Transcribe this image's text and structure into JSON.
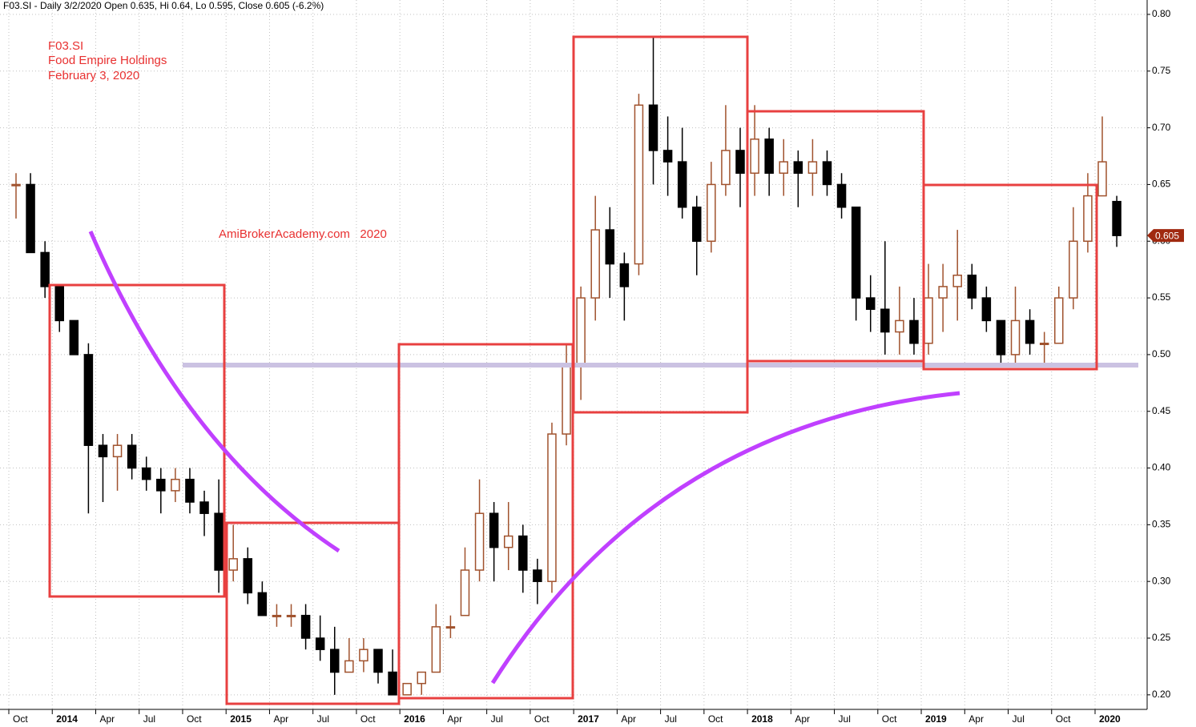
{
  "chart_data": {
    "type": "candlestick",
    "title": "F03.SI - Daily 3/2/2020 Open 0.635, Hi 0.64, Lo 0.595, Close 0.605 (-6.2%)",
    "annotations": [
      "F03.SI",
      "Food Empire Holdings",
      "February 3, 2020",
      "AmiBrokerAcademy.com   2020"
    ],
    "categories": [
      "Oct",
      null,
      null,
      "2014",
      null,
      null,
      "Apr",
      null,
      null,
      "Jul",
      null,
      null,
      "Oct",
      null,
      null,
      "2015",
      null,
      null,
      "Apr",
      null,
      null,
      "Jul",
      null,
      null,
      "Oct",
      null,
      null,
      "2016",
      null,
      null,
      "Apr",
      null,
      null,
      "Jul",
      null,
      null,
      "Oct",
      null,
      null,
      "2017",
      null,
      null,
      "Apr",
      null,
      null,
      "Jul",
      null,
      null,
      "Oct",
      null,
      null,
      "2018",
      null,
      null,
      "Apr",
      null,
      null,
      "Jul",
      null,
      null,
      "Oct",
      null,
      null,
      "2019",
      null,
      null,
      "Apr",
      null,
      null,
      "Jul",
      null,
      null,
      "Oct",
      null,
      null,
      "2020",
      null
    ],
    "open": [
      0.65,
      0.65,
      0.59,
      0.56,
      0.53,
      0.5,
      0.42,
      0.41,
      0.42,
      0.4,
      0.39,
      0.38,
      0.39,
      0.37,
      0.36,
      0.31,
      0.32,
      0.29,
      0.27,
      0.27,
      0.27,
      0.25,
      0.24,
      0.22,
      0.23,
      0.24,
      0.22,
      0.2,
      0.21,
      0.22,
      0.26,
      0.27,
      0.31,
      0.36,
      0.33,
      0.34,
      0.31,
      0.3,
      0.43,
      0.49,
      0.55,
      0.61,
      0.58,
      0.58,
      0.72,
      0.68,
      0.67,
      0.63,
      0.6,
      0.65,
      0.68,
      0.66,
      0.69,
      0.66,
      0.67,
      0.66,
      0.67,
      0.65,
      0.63,
      0.55,
      0.54,
      0.52,
      0.53,
      0.51,
      0.55,
      0.56,
      0.57,
      0.55,
      0.53,
      0.5,
      0.53,
      0.51,
      0.51,
      0.55,
      0.6,
      0.64,
      0.635
    ],
    "high": [
      0.66,
      0.66,
      0.6,
      0.56,
      0.53,
      0.51,
      0.43,
      0.43,
      0.43,
      0.41,
      0.4,
      0.4,
      0.4,
      0.38,
      0.39,
      0.35,
      0.33,
      0.3,
      0.28,
      0.28,
      0.28,
      0.27,
      0.26,
      0.25,
      0.25,
      0.24,
      0.24,
      0.21,
      0.22,
      0.28,
      0.27,
      0.33,
      0.39,
      0.37,
      0.37,
      0.35,
      0.32,
      0.44,
      0.51,
      0.56,
      0.64,
      0.63,
      0.59,
      0.73,
      0.78,
      0.71,
      0.7,
      0.64,
      0.67,
      0.72,
      0.7,
      0.72,
      0.7,
      0.69,
      0.68,
      0.69,
      0.68,
      0.66,
      0.63,
      0.57,
      0.6,
      0.56,
      0.55,
      0.58,
      0.58,
      0.61,
      0.58,
      0.56,
      0.53,
      0.56,
      0.54,
      0.52,
      0.56,
      0.63,
      0.66,
      0.71,
      0.64
    ],
    "low": [
      0.62,
      0.59,
      0.55,
      0.52,
      0.5,
      0.36,
      0.37,
      0.38,
      0.39,
      0.38,
      0.36,
      0.37,
      0.36,
      0.34,
      0.29,
      0.3,
      0.28,
      0.27,
      0.26,
      0.26,
      0.24,
      0.23,
      0.2,
      0.22,
      0.22,
      0.21,
      0.2,
      0.2,
      0.2,
      0.22,
      0.25,
      0.27,
      0.3,
      0.3,
      0.31,
      0.29,
      0.28,
      0.29,
      0.42,
      0.46,
      0.53,
      0.55,
      0.53,
      0.57,
      0.65,
      0.64,
      0.62,
      0.57,
      0.59,
      0.64,
      0.63,
      0.64,
      0.64,
      0.64,
      0.63,
      0.64,
      0.64,
      0.62,
      0.53,
      0.52,
      0.5,
      0.5,
      0.5,
      0.5,
      0.52,
      0.53,
      0.54,
      0.52,
      0.49,
      0.49,
      0.5,
      0.49,
      0.51,
      0.54,
      0.59,
      0.64,
      0.595
    ],
    "close": [
      0.65,
      0.59,
      0.56,
      0.53,
      0.5,
      0.42,
      0.41,
      0.42,
      0.4,
      0.39,
      0.38,
      0.39,
      0.37,
      0.36,
      0.31,
      0.32,
      0.29,
      0.27,
      0.27,
      0.27,
      0.25,
      0.24,
      0.22,
      0.23,
      0.24,
      0.22,
      0.2,
      0.21,
      0.22,
      0.26,
      0.26,
      0.31,
      0.36,
      0.33,
      0.34,
      0.31,
      0.3,
      0.43,
      0.49,
      0.55,
      0.61,
      0.58,
      0.56,
      0.72,
      0.68,
      0.67,
      0.63,
      0.6,
      0.65,
      0.68,
      0.66,
      0.69,
      0.66,
      0.67,
      0.66,
      0.67,
      0.65,
      0.63,
      0.55,
      0.54,
      0.52,
      0.53,
      0.51,
      0.55,
      0.56,
      0.57,
      0.55,
      0.53,
      0.5,
      0.53,
      0.51,
      0.51,
      0.55,
      0.6,
      0.64,
      0.67,
      0.605
    ],
    "up_color": "#a0522d",
    "down_color": "#000000",
    "last_value": 0.605,
    "last_color": "#a02a10",
    "ylim": [
      0.19,
      0.81
    ],
    "yticks": [
      {
        "value": 0.2,
        "label": "0.20"
      },
      0.25,
      {
        "value": 0.3,
        "label": "0.30"
      },
      0.35,
      {
        "value": 0.4,
        "label": "0.40"
      },
      0.45,
      {
        "value": 0.5,
        "label": "0.50"
      },
      0.55,
      {
        "value": 0.6,
        "label": "0.60"
      },
      0.65,
      {
        "value": 0.7,
        "label": "0.70"
      },
      0.75,
      {
        "value": 0.8,
        "label": "0.80"
      }
    ],
    "grid": true
  }
}
